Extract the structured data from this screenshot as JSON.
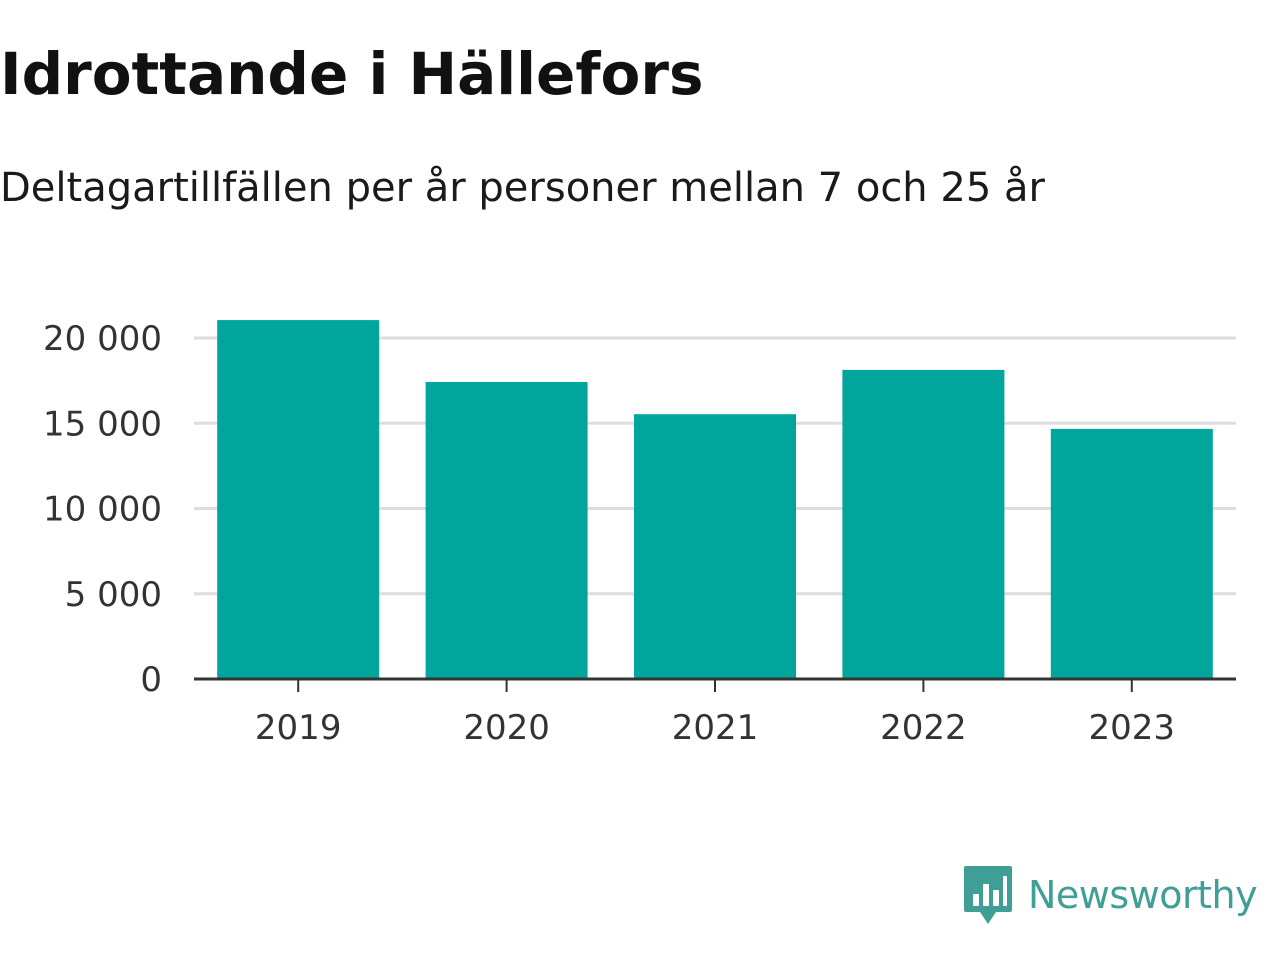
{
  "header": {
    "title": "Idrottande i Hällefors",
    "subtitle": "Deltagartillfällen per år personer mellan 7 och 25 år"
  },
  "brand": {
    "name": "Newsworthy",
    "icon": "bar-chart-speech-bubble-icon",
    "color": "#3f9e95"
  },
  "chart_data": {
    "type": "bar",
    "categories": [
      "2019",
      "2020",
      "2021",
      "2022",
      "2023"
    ],
    "values": [
      21050,
      17420,
      15530,
      18130,
      14670
    ],
    "ylim": [
      0,
      20000
    ],
    "yticks": [
      0,
      5000,
      10000,
      15000,
      20000
    ],
    "ytick_labels": [
      "0",
      "5 000",
      "10 000",
      "15 000",
      "20 000"
    ],
    "title": "Idrottande i Hällefors",
    "subtitle": "Deltagartillfällen per år personer mellan 7 och 25 år",
    "xlabel": "",
    "ylabel": "",
    "grid": true,
    "colors": {
      "bar": "#00a59b",
      "grid": "#dddddd",
      "axis": "#333333"
    }
  }
}
